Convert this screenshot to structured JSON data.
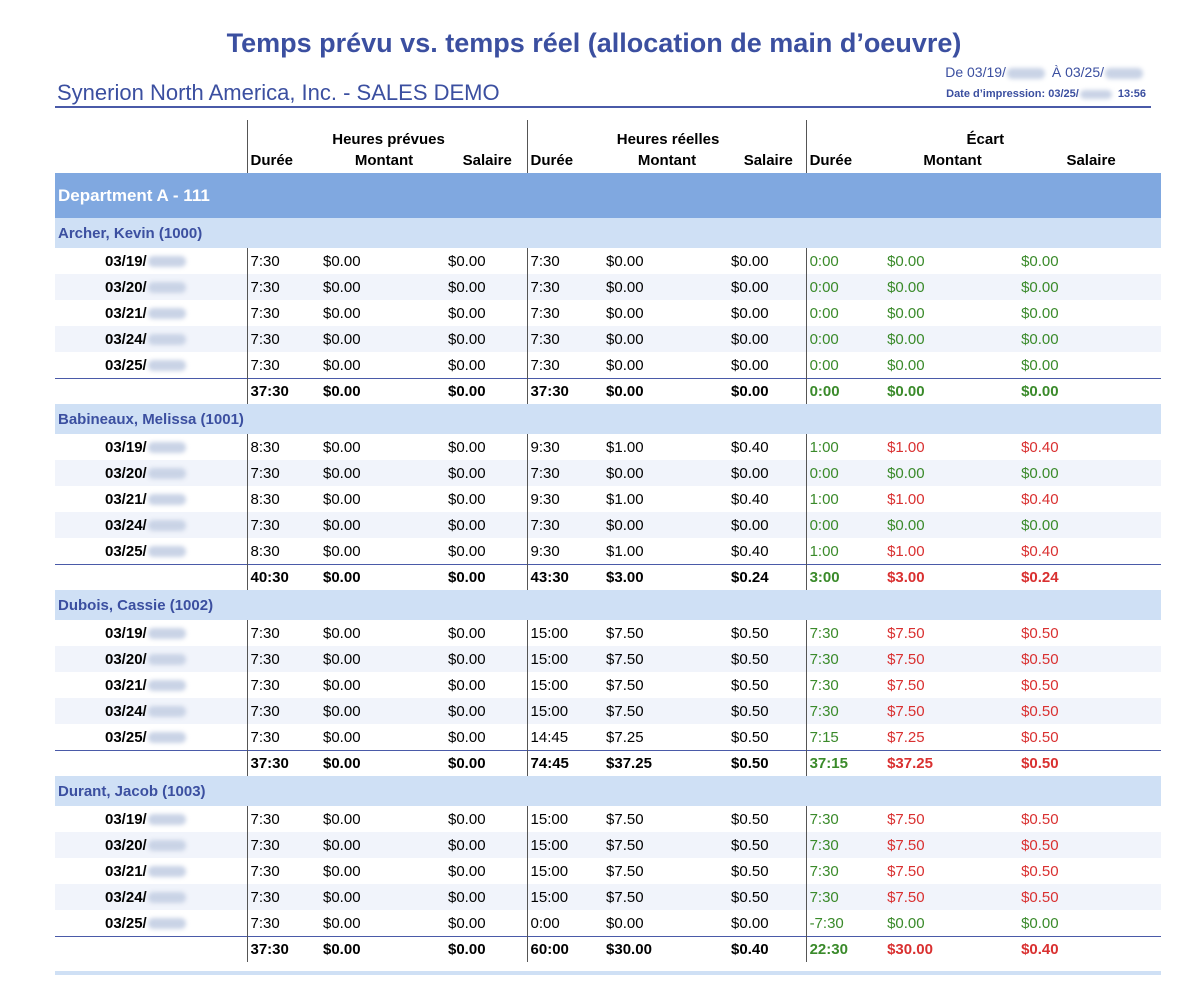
{
  "report": {
    "title": "Temps prévu vs. temps réel (allocation de main d’oeuvre)",
    "company": "Synerion North America, Inc. - SALES DEMO",
    "range_from_label": "De 03/19/",
    "range_to_label": "À 03/25/",
    "printed_label": "Date d’impression: 03/25/",
    "printed_time": "13:56"
  },
  "columns": {
    "groups": [
      "Heures prévues",
      "Heures réelles",
      "Écart"
    ],
    "sub": [
      "Durée",
      "Montant",
      "Salaire",
      "Durée",
      "Montant",
      "Salaire",
      "Durée",
      "Montant",
      "Salaire"
    ]
  },
  "department": "Department A - 111",
  "colors": {
    "positive": "#3a8a2a",
    "negative": "#d93030",
    "accent": "#3b4fa0",
    "dept_band": "#80a8e0",
    "emp_band": "#cfe0f5"
  },
  "employees": [
    {
      "name": "Archer, Kevin (1000)",
      "rows": [
        {
          "date": "03/19/",
          "v": [
            "7:30",
            "$0.00",
            "$0.00",
            "7:30",
            "$0.00",
            "$0.00",
            "0:00",
            "$0.00",
            "$0.00"
          ],
          "c": [
            "g",
            "g",
            "g"
          ]
        },
        {
          "date": "03/20/",
          "v": [
            "7:30",
            "$0.00",
            "$0.00",
            "7:30",
            "$0.00",
            "$0.00",
            "0:00",
            "$0.00",
            "$0.00"
          ],
          "c": [
            "g",
            "g",
            "g"
          ]
        },
        {
          "date": "03/21/",
          "v": [
            "7:30",
            "$0.00",
            "$0.00",
            "7:30",
            "$0.00",
            "$0.00",
            "0:00",
            "$0.00",
            "$0.00"
          ],
          "c": [
            "g",
            "g",
            "g"
          ]
        },
        {
          "date": "03/24/",
          "v": [
            "7:30",
            "$0.00",
            "$0.00",
            "7:30",
            "$0.00",
            "$0.00",
            "0:00",
            "$0.00",
            "$0.00"
          ],
          "c": [
            "g",
            "g",
            "g"
          ]
        },
        {
          "date": "03/25/",
          "v": [
            "7:30",
            "$0.00",
            "$0.00",
            "7:30",
            "$0.00",
            "$0.00",
            "0:00",
            "$0.00",
            "$0.00"
          ],
          "c": [
            "g",
            "g",
            "g"
          ]
        }
      ],
      "total": {
        "v": [
          "37:30",
          "$0.00",
          "$0.00",
          "37:30",
          "$0.00",
          "$0.00",
          "0:00",
          "$0.00",
          "$0.00"
        ],
        "c": [
          "g",
          "g",
          "g"
        ]
      }
    },
    {
      "name": "Babineaux, Melissa (1001)",
      "rows": [
        {
          "date": "03/19/",
          "v": [
            "8:30",
            "$0.00",
            "$0.00",
            "9:30",
            "$1.00",
            "$0.40",
            "1:00",
            "$1.00",
            "$0.40"
          ],
          "c": [
            "g",
            "r",
            "r"
          ]
        },
        {
          "date": "03/20/",
          "v": [
            "7:30",
            "$0.00",
            "$0.00",
            "7:30",
            "$0.00",
            "$0.00",
            "0:00",
            "$0.00",
            "$0.00"
          ],
          "c": [
            "g",
            "g",
            "g"
          ]
        },
        {
          "date": "03/21/",
          "v": [
            "8:30",
            "$0.00",
            "$0.00",
            "9:30",
            "$1.00",
            "$0.40",
            "1:00",
            "$1.00",
            "$0.40"
          ],
          "c": [
            "g",
            "r",
            "r"
          ]
        },
        {
          "date": "03/24/",
          "v": [
            "7:30",
            "$0.00",
            "$0.00",
            "7:30",
            "$0.00",
            "$0.00",
            "0:00",
            "$0.00",
            "$0.00"
          ],
          "c": [
            "g",
            "g",
            "g"
          ]
        },
        {
          "date": "03/25/",
          "v": [
            "8:30",
            "$0.00",
            "$0.00",
            "9:30",
            "$1.00",
            "$0.40",
            "1:00",
            "$1.00",
            "$0.40"
          ],
          "c": [
            "g",
            "r",
            "r"
          ]
        }
      ],
      "total": {
        "v": [
          "40:30",
          "$0.00",
          "$0.00",
          "43:30",
          "$3.00",
          "$0.24",
          "3:00",
          "$3.00",
          "$0.24"
        ],
        "c": [
          "g",
          "r",
          "r"
        ]
      }
    },
    {
      "name": "Dubois, Cassie (1002)",
      "rows": [
        {
          "date": "03/19/",
          "v": [
            "7:30",
            "$0.00",
            "$0.00",
            "15:00",
            "$7.50",
            "$0.50",
            "7:30",
            "$7.50",
            "$0.50"
          ],
          "c": [
            "g",
            "r",
            "r"
          ]
        },
        {
          "date": "03/20/",
          "v": [
            "7:30",
            "$0.00",
            "$0.00",
            "15:00",
            "$7.50",
            "$0.50",
            "7:30",
            "$7.50",
            "$0.50"
          ],
          "c": [
            "g",
            "r",
            "r"
          ]
        },
        {
          "date": "03/21/",
          "v": [
            "7:30",
            "$0.00",
            "$0.00",
            "15:00",
            "$7.50",
            "$0.50",
            "7:30",
            "$7.50",
            "$0.50"
          ],
          "c": [
            "g",
            "r",
            "r"
          ]
        },
        {
          "date": "03/24/",
          "v": [
            "7:30",
            "$0.00",
            "$0.00",
            "15:00",
            "$7.50",
            "$0.50",
            "7:30",
            "$7.50",
            "$0.50"
          ],
          "c": [
            "g",
            "r",
            "r"
          ]
        },
        {
          "date": "03/25/",
          "v": [
            "7:30",
            "$0.00",
            "$0.00",
            "14:45",
            "$7.25",
            "$0.50",
            "7:15",
            "$7.25",
            "$0.50"
          ],
          "c": [
            "g",
            "r",
            "r"
          ]
        }
      ],
      "total": {
        "v": [
          "37:30",
          "$0.00",
          "$0.00",
          "74:45",
          "$37.25",
          "$0.50",
          "37:15",
          "$37.25",
          "$0.50"
        ],
        "c": [
          "g",
          "r",
          "r"
        ]
      }
    },
    {
      "name": "Durant, Jacob (1003)",
      "rows": [
        {
          "date": "03/19/",
          "v": [
            "7:30",
            "$0.00",
            "$0.00",
            "15:00",
            "$7.50",
            "$0.50",
            "7:30",
            "$7.50",
            "$0.50"
          ],
          "c": [
            "g",
            "r",
            "r"
          ]
        },
        {
          "date": "03/20/",
          "v": [
            "7:30",
            "$0.00",
            "$0.00",
            "15:00",
            "$7.50",
            "$0.50",
            "7:30",
            "$7.50",
            "$0.50"
          ],
          "c": [
            "g",
            "r",
            "r"
          ]
        },
        {
          "date": "03/21/",
          "v": [
            "7:30",
            "$0.00",
            "$0.00",
            "15:00",
            "$7.50",
            "$0.50",
            "7:30",
            "$7.50",
            "$0.50"
          ],
          "c": [
            "g",
            "r",
            "r"
          ]
        },
        {
          "date": "03/24/",
          "v": [
            "7:30",
            "$0.00",
            "$0.00",
            "15:00",
            "$7.50",
            "$0.50",
            "7:30",
            "$7.50",
            "$0.50"
          ],
          "c": [
            "g",
            "r",
            "r"
          ]
        },
        {
          "date": "03/25/",
          "v": [
            "7:30",
            "$0.00",
            "$0.00",
            "0:00",
            "$0.00",
            "$0.00",
            "-7:30",
            "$0.00",
            "$0.00"
          ],
          "c": [
            "g",
            "g",
            "g"
          ]
        }
      ],
      "total": {
        "v": [
          "37:30",
          "$0.00",
          "$0.00",
          "60:00",
          "$30.00",
          "$0.40",
          "22:30",
          "$30.00",
          "$0.40"
        ],
        "c": [
          "g",
          "r",
          "r"
        ]
      }
    }
  ]
}
